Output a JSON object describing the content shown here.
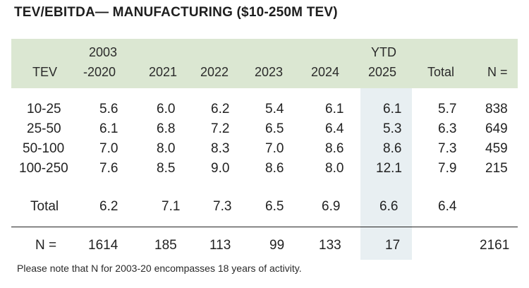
{
  "title": "TEV/EBITDA— MANUFACTURING ($10-250M TEV)",
  "header": {
    "tev": "TEV",
    "period_top": "2003",
    "period_bottom": "-2020",
    "y2021": "2021",
    "y2022": "2022",
    "y2023": "2023",
    "y2024": "2024",
    "ytd_top": "YTD",
    "ytd_bottom": "2025",
    "total": "Total",
    "n": "N ="
  },
  "rows": [
    {
      "tev": "10-25",
      "p0320": "5.6",
      "y2021": "6.0",
      "y2022": "6.2",
      "y2023": "5.4",
      "y2024": "6.1",
      "ytd2025": "6.1",
      "total": "5.7",
      "n": "838"
    },
    {
      "tev": "25-50",
      "p0320": "6.1",
      "y2021": "6.8",
      "y2022": "7.2",
      "y2023": "6.5",
      "y2024": "6.4",
      "ytd2025": "5.3",
      "total": "6.3",
      "n": "649"
    },
    {
      "tev": "50-100",
      "p0320": "7.0",
      "y2021": "8.0",
      "y2022": "8.3",
      "y2023": "7.0",
      "y2024": "8.6",
      "ytd2025": "8.6",
      "total": "7.3",
      "n": "459"
    },
    {
      "tev": "100-250",
      "p0320": "7.6",
      "y2021": "8.5",
      "y2022": "9.0",
      "y2023": "8.6",
      "y2024": "8.0",
      "ytd2025": "12.1",
      "total": "7.9",
      "n": "215"
    }
  ],
  "total_row": {
    "label": "Total",
    "p0320": "6.2",
    "y2021": "7.1",
    "y2022": "7.3",
    "y2023": "6.5",
    "y2024": "6.9",
    "ytd2025": "6.6",
    "total": "6.4"
  },
  "n_row": {
    "label": "N =",
    "p0320": "1614",
    "y2021": "185",
    "y2022": "113",
    "y2023": "99",
    "y2024": "133",
    "ytd2025": "17",
    "total_n": "2161"
  },
  "note": "Please note that N for 2003-20 encompasses 18 years of activity.",
  "colors": {
    "header_band": "#dbe7d2",
    "ytd_highlight": "#e8eff2",
    "text": "#222222"
  }
}
